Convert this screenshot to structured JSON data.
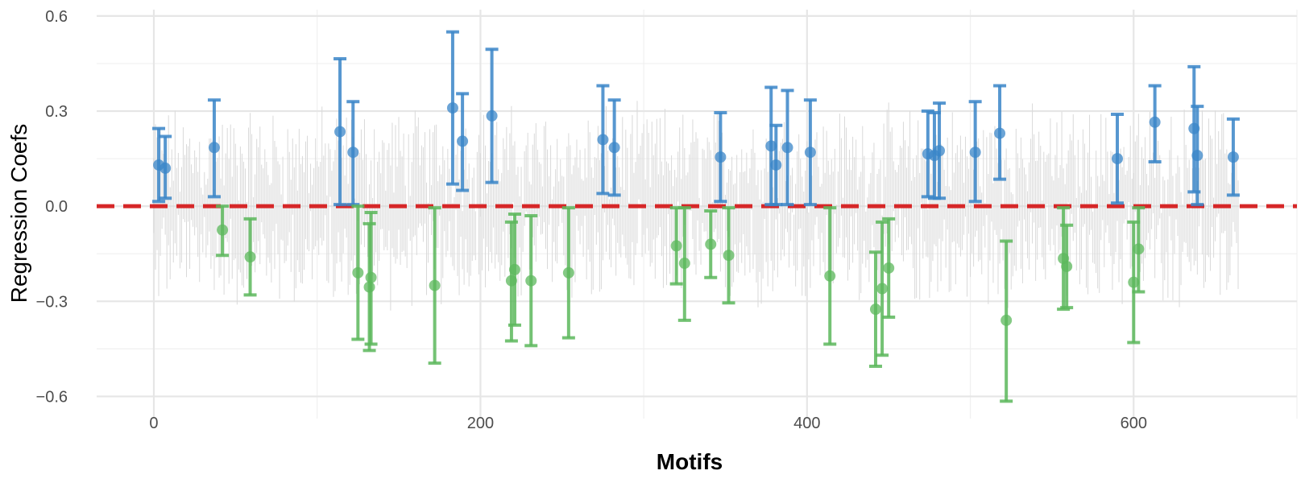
{
  "chart_data": {
    "type": "scatter",
    "title": "",
    "xlabel": "Motifs",
    "ylabel": "Regression Coefs",
    "xlim": [
      -35,
      700
    ],
    "ylim": [
      -0.67,
      0.62
    ],
    "x_ticks": [
      {
        "value": 0,
        "label": "0"
      },
      {
        "value": 200,
        "label": "200"
      },
      {
        "value": 400,
        "label": "400"
      },
      {
        "value": 600,
        "label": "600"
      }
    ],
    "y_ticks": [
      {
        "value": 0.6,
        "label": "0.6"
      },
      {
        "value": 0.3,
        "label": "0.3"
      },
      {
        "value": 0.0,
        "label": "0.0"
      },
      {
        "value": -0.3,
        "label": "−0.3"
      },
      {
        "value": -0.6,
        "label": "−0.6"
      }
    ],
    "grid": true,
    "reference_line": {
      "y": 0,
      "style": "dashed",
      "color": "#d62728"
    },
    "background_errorbars": {
      "count": 665,
      "color": "#d9d9d9"
    },
    "series": [
      {
        "color": "#3a86c8",
        "points": [
          {
            "x": 3,
            "y": 0.13,
            "lo": 0.015,
            "hi": 0.245
          },
          {
            "x": 7,
            "y": 0.12,
            "lo": 0.025,
            "hi": 0.22
          },
          {
            "x": 37,
            "y": 0.185,
            "lo": 0.03,
            "hi": 0.335
          },
          {
            "x": 114,
            "y": 0.235,
            "lo": 0.005,
            "hi": 0.465
          },
          {
            "x": 122,
            "y": 0.17,
            "lo": 0.005,
            "hi": 0.33
          },
          {
            "x": 183,
            "y": 0.31,
            "lo": 0.07,
            "hi": 0.55
          },
          {
            "x": 189,
            "y": 0.205,
            "lo": 0.05,
            "hi": 0.355
          },
          {
            "x": 207,
            "y": 0.285,
            "lo": 0.075,
            "hi": 0.495
          },
          {
            "x": 275,
            "y": 0.21,
            "lo": 0.04,
            "hi": 0.38
          },
          {
            "x": 282,
            "y": 0.185,
            "lo": 0.035,
            "hi": 0.335
          },
          {
            "x": 347,
            "y": 0.155,
            "lo": 0.015,
            "hi": 0.295
          },
          {
            "x": 378,
            "y": 0.19,
            "lo": 0.005,
            "hi": 0.375
          },
          {
            "x": 381,
            "y": 0.13,
            "lo": 0.005,
            "hi": 0.255
          },
          {
            "x": 388,
            "y": 0.185,
            "lo": 0.005,
            "hi": 0.365
          },
          {
            "x": 402,
            "y": 0.17,
            "lo": 0.005,
            "hi": 0.335
          },
          {
            "x": 474,
            "y": 0.165,
            "lo": 0.03,
            "hi": 0.3
          },
          {
            "x": 478,
            "y": 0.16,
            "lo": 0.025,
            "hi": 0.295
          },
          {
            "x": 481,
            "y": 0.175,
            "lo": 0.025,
            "hi": 0.325
          },
          {
            "x": 503,
            "y": 0.17,
            "lo": 0.015,
            "hi": 0.33
          },
          {
            "x": 518,
            "y": 0.23,
            "lo": 0.085,
            "hi": 0.38
          },
          {
            "x": 590,
            "y": 0.15,
            "lo": 0.01,
            "hi": 0.29
          },
          {
            "x": 613,
            "y": 0.265,
            "lo": 0.14,
            "hi": 0.38
          },
          {
            "x": 637,
            "y": 0.245,
            "lo": 0.045,
            "hi": 0.44
          },
          {
            "x": 639,
            "y": 0.16,
            "lo": 0.005,
            "hi": 0.315
          },
          {
            "x": 661,
            "y": 0.155,
            "lo": 0.035,
            "hi": 0.275
          }
        ]
      },
      {
        "color": "#5cb85c",
        "points": [
          {
            "x": 42,
            "y": -0.075,
            "lo": -0.155,
            "hi": 0.0
          },
          {
            "x": 59,
            "y": -0.16,
            "lo": -0.28,
            "hi": -0.04
          },
          {
            "x": 125,
            "y": -0.21,
            "lo": -0.42,
            "hi": 0.0
          },
          {
            "x": 132,
            "y": -0.255,
            "lo": -0.455,
            "hi": -0.055
          },
          {
            "x": 133,
            "y": -0.225,
            "lo": -0.435,
            "hi": -0.02
          },
          {
            "x": 172,
            "y": -0.25,
            "lo": -0.495,
            "hi": -0.005
          },
          {
            "x": 219,
            "y": -0.235,
            "lo": -0.425,
            "hi": -0.05
          },
          {
            "x": 221,
            "y": -0.2,
            "lo": -0.375,
            "hi": -0.025
          },
          {
            "x": 231,
            "y": -0.235,
            "lo": -0.44,
            "hi": -0.03
          },
          {
            "x": 254,
            "y": -0.21,
            "lo": -0.415,
            "hi": -0.005
          },
          {
            "x": 320,
            "y": -0.125,
            "lo": -0.245,
            "hi": -0.005
          },
          {
            "x": 325,
            "y": -0.18,
            "lo": -0.36,
            "hi": -0.005
          },
          {
            "x": 341,
            "y": -0.12,
            "lo": -0.225,
            "hi": -0.015
          },
          {
            "x": 352,
            "y": -0.155,
            "lo": -0.305,
            "hi": -0.005
          },
          {
            "x": 414,
            "y": -0.22,
            "lo": -0.435,
            "hi": -0.005
          },
          {
            "x": 442,
            "y": -0.325,
            "lo": -0.505,
            "hi": -0.145
          },
          {
            "x": 446,
            "y": -0.26,
            "lo": -0.47,
            "hi": -0.05
          },
          {
            "x": 450,
            "y": -0.195,
            "lo": -0.35,
            "hi": -0.04
          },
          {
            "x": 522,
            "y": -0.36,
            "lo": -0.615,
            "hi": -0.11
          },
          {
            "x": 557,
            "y": -0.165,
            "lo": -0.325,
            "hi": -0.005
          },
          {
            "x": 559,
            "y": -0.19,
            "lo": -0.32,
            "hi": -0.06
          },
          {
            "x": 600,
            "y": -0.24,
            "lo": -0.43,
            "hi": -0.05
          },
          {
            "x": 603,
            "y": -0.135,
            "lo": -0.27,
            "hi": -0.005
          }
        ]
      }
    ]
  }
}
